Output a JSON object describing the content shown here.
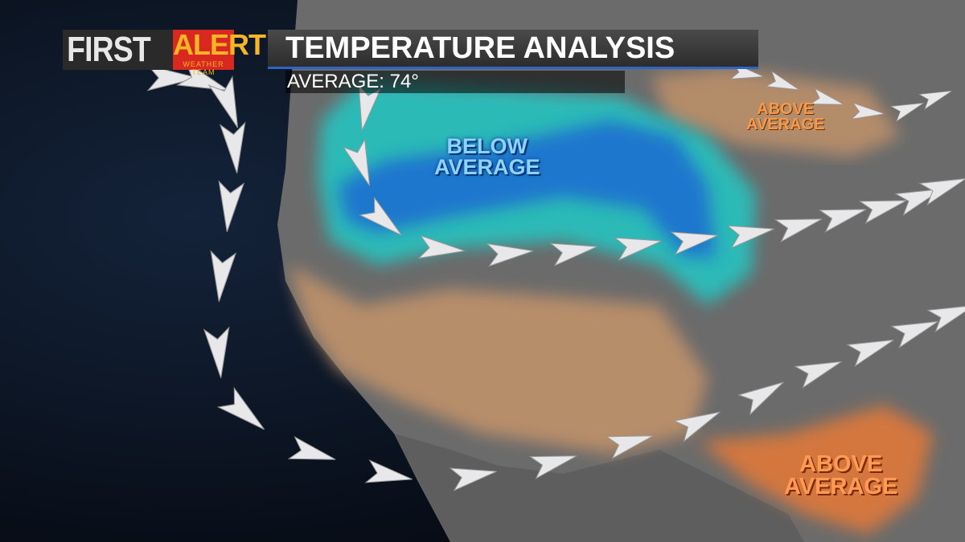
{
  "header": {
    "logo_first": "FIRST",
    "logo_alert": "ALERT",
    "logo_team": "WEATHER TEAM",
    "title": "TEMPERATURE ANALYSIS",
    "subtitle": "AVERAGE: 74°"
  },
  "labels": {
    "below": [
      "BELOW",
      "AVERAGE"
    ],
    "above_north": [
      "ABOVE",
      "AVERAGE"
    ],
    "above_south": [
      "ABOVE",
      "AVERAGE"
    ]
  },
  "colors": {
    "ocean": "#0b1626",
    "land": "#6e6e6e",
    "below_light": "#27c3c0",
    "below_dark": "#1f6fd0",
    "above": "#c89a6a",
    "above_strong": "#d9783e",
    "accent": "#2f63c8",
    "alert_red": "#d8281f",
    "alert_gold": "#f4b626"
  },
  "jet_stream": {
    "icon": "arrow-chevron-icon",
    "direction": "southward along coast then eastward"
  }
}
